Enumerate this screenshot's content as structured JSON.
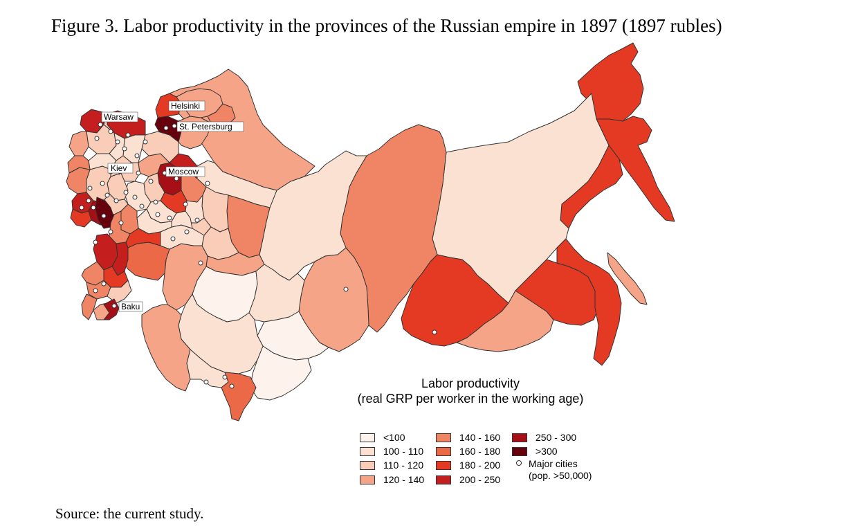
{
  "figure": {
    "title": "Figure 3. Labor productivity in the provinces of the Russian empire in 1897 (1897 rubles)",
    "source": "Source: the current study."
  },
  "legend": {
    "title": "Labor productivity",
    "subtitle": "(real GRP per worker in the working age)",
    "classes": [
      {
        "label": "<100",
        "color": "#fef3ec"
      },
      {
        "label": "100 - 110",
        "color": "#fbe1d2"
      },
      {
        "label": "110 - 120",
        "color": "#f9cdb8"
      },
      {
        "label": "120 - 140",
        "color": "#f5a487"
      },
      {
        "label": "140 - 160",
        "color": "#f08565"
      },
      {
        "label": "160 - 180",
        "color": "#ec6948"
      },
      {
        "label": "180 - 200",
        "color": "#e43a23"
      },
      {
        "label": "200 - 250",
        "color": "#c41e1e"
      },
      {
        "label": "250 - 300",
        "color": "#a50f15"
      },
      {
        "label": ">300",
        "color": "#67000d"
      }
    ],
    "city_symbol": {
      "line1": "Major cities",
      "line2": "(pop. >50,000)"
    }
  },
  "cities": {
    "helsinki": "Helsinki",
    "st_petersburg": "St. Petersburg",
    "warsaw": "Warsaw",
    "kiev": "Kiev",
    "moscow": "Moscow",
    "baku": "Baku"
  }
}
